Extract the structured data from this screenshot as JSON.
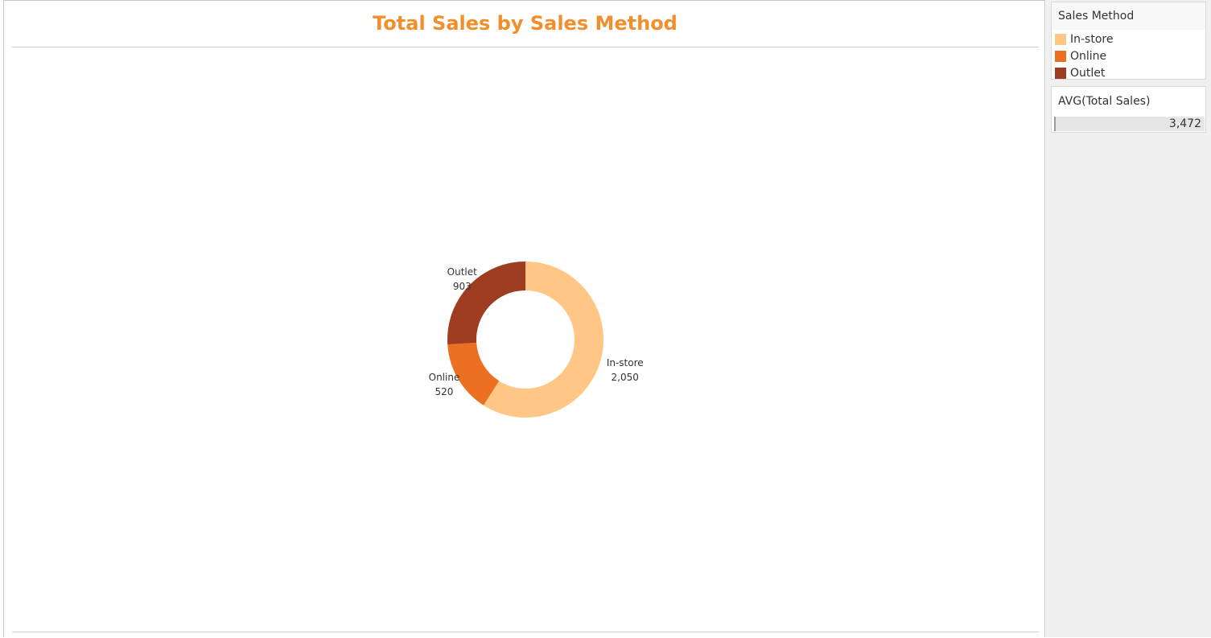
{
  "colors": {
    "title": "#f28e2b",
    "in_store": "#ffc685",
    "online": "#ed6f21",
    "outlet": "#9e3d22"
  },
  "legend": {
    "title": "Sales Method",
    "items": [
      {
        "label": "In-store",
        "color": "#ffc685"
      },
      {
        "label": "Online",
        "color": "#ed6f21"
      },
      {
        "label": "Outlet",
        "color": "#9e3d22"
      }
    ]
  },
  "avg_card": {
    "title": "AVG(Total Sales)",
    "value": "3,472"
  },
  "chart_data": {
    "type": "pie",
    "title": "Total Sales by Sales Method",
    "subtype": "donut",
    "categories": [
      "In-store",
      "Online",
      "Outlet"
    ],
    "values": [
      2050,
      520,
      903
    ],
    "value_labels": [
      "2,050",
      "520",
      "903"
    ],
    "colors": [
      "#ffc685",
      "#ed6f21",
      "#9e3d22"
    ],
    "legend": "right"
  }
}
